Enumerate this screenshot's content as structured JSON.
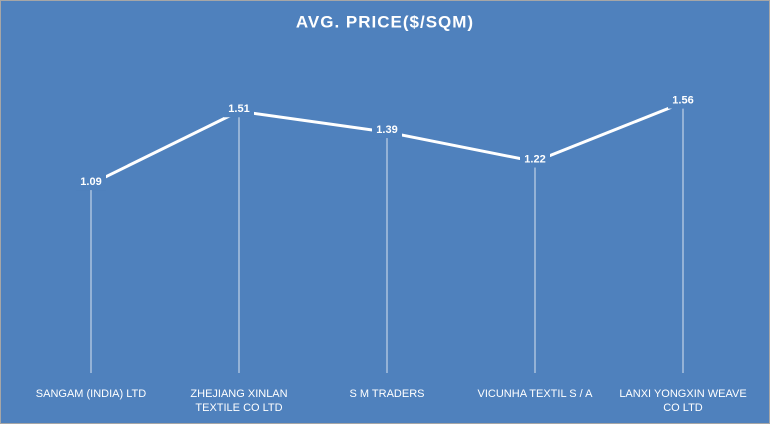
{
  "chart_data": {
    "type": "line",
    "title": "AVG. PRICE($/SQM)",
    "categories": [
      "SANGAM (INDIA) LTD",
      "ZHEJIANG XINLAN TEXTILE CO LTD",
      "S M TRADERS",
      "VICUNHA TEXTIL S / A",
      "LANXI YONGXIN WEAVE CO LTD"
    ],
    "values": [
      1.09,
      1.51,
      1.39,
      1.22,
      1.56
    ],
    "color": "#ffffff",
    "background": "#4f81bd",
    "ylim": [
      0,
      1.8
    ],
    "drop_lines": true,
    "data_labels": true
  }
}
